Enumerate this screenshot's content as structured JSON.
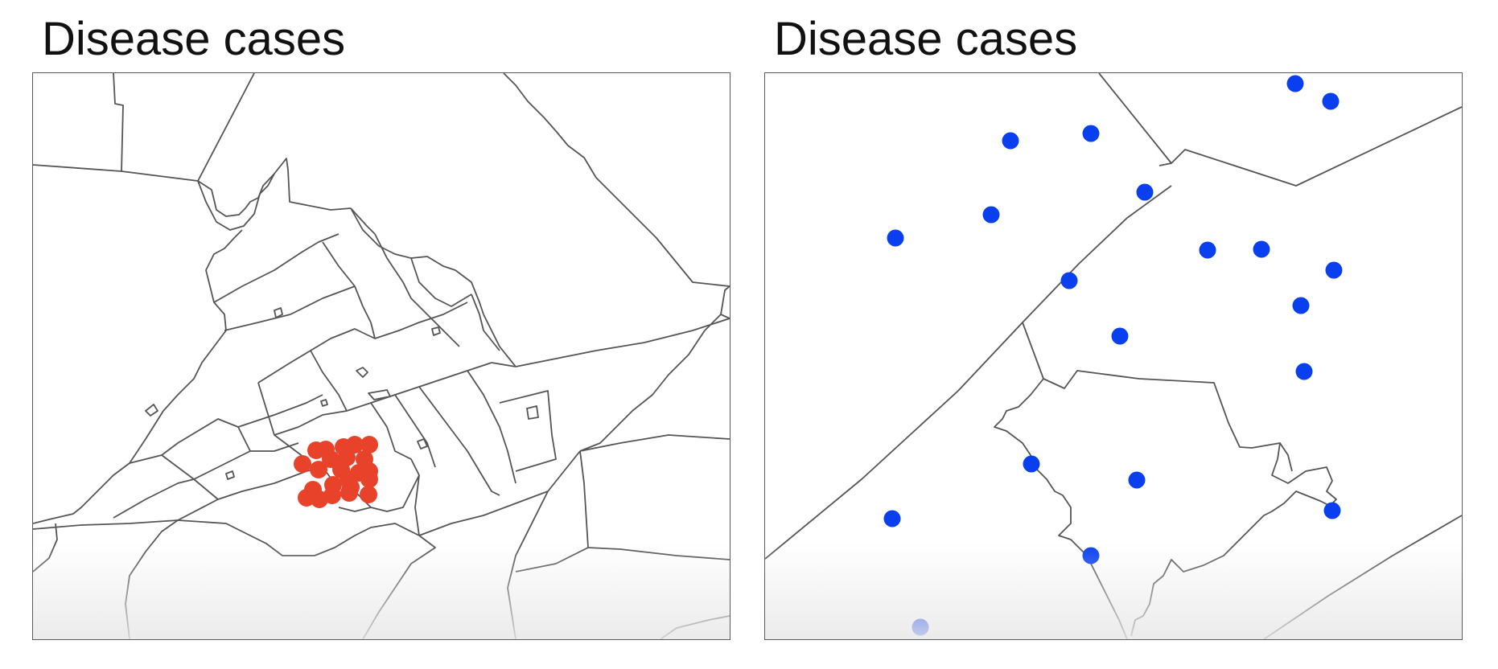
{
  "panels": [
    {
      "title": "Disease cases",
      "marker_color": "#e8432a",
      "marker_shape": "filled-circle",
      "distribution": "clustered"
    },
    {
      "title": "Disease cases",
      "marker_color": "#0a3ff0",
      "marker_shape": "filled-circle",
      "distribution": "dispersed"
    }
  ],
  "boundary_color": "#555555",
  "background_color": "#ffffff"
}
